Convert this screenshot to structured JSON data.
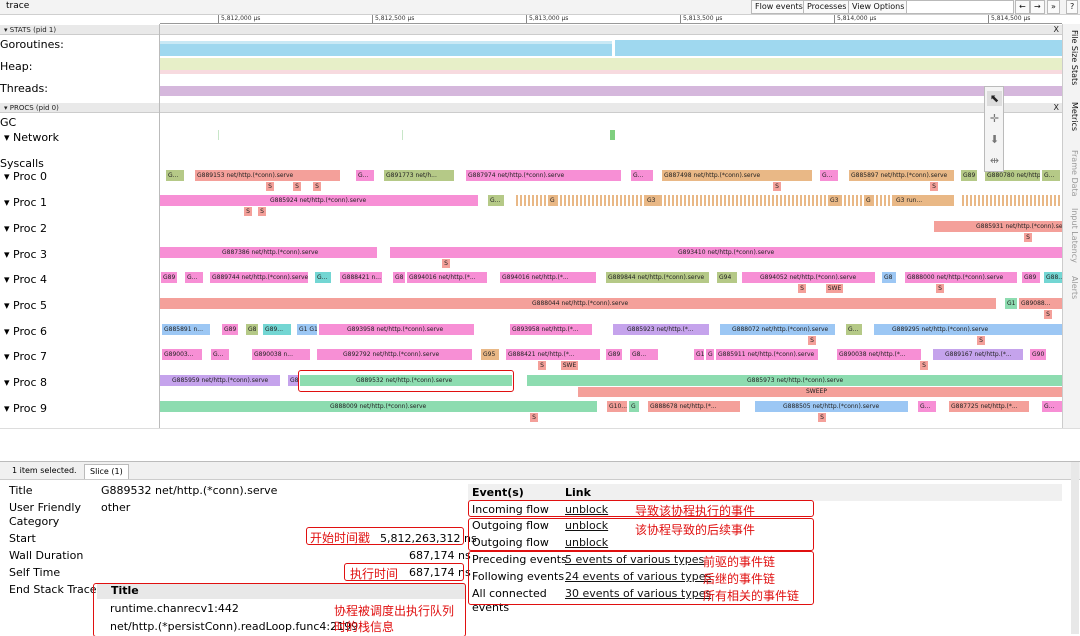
{
  "window": {
    "title": "trace"
  },
  "toolbar": {
    "flow_events": "Flow events",
    "processes": "Processes",
    "view_options": "View Options",
    "search_value": "",
    "nav_prev": "←",
    "nav_next": "→",
    "nav_more": "»",
    "help": "?"
  },
  "ruler": {
    "ticks": [
      "5,812,000 µs",
      "5,812,500 µs",
      "5,813,000 µs",
      "5,813,500 µs",
      "5,814,000 µs",
      "5,814,500 µs"
    ]
  },
  "stats_group": {
    "header": "▾ STATS (pid 1)",
    "close": "X",
    "rows": [
      "Goroutines:",
      "Heap:",
      "Threads:"
    ]
  },
  "procs_group": {
    "header": "▾ PROCS (pid 0)",
    "close": "X",
    "gc_label": "GC",
    "network_label": "▾  Network",
    "syscalls_label": "Syscalls",
    "proc_labels": [
      "▾  Proc 0",
      "▾  Proc 1",
      "▾  Proc 2",
      "▾  Proc 3",
      "▾  Proc 4",
      "▾  Proc 5",
      "▾  Proc 6",
      "▾  Proc 7",
      "▾  Proc 8",
      "▾  Proc 9"
    ]
  },
  "slices": {
    "p0": [
      "G...",
      "G889153 net/http.(*conn).serve",
      "G...",
      "G891773 net/h...",
      "G887974 net/http.(*conn).serve",
      "G...",
      "G887498 net/http.(*conn).serve",
      "G...",
      "G885897 net/http.(*conn).serve",
      "G89",
      "G880780 net/http.(*...",
      "G..."
    ],
    "p1": [
      "G885924 net/http.(*conn).serve",
      "G...",
      "G",
      "G3",
      "G3",
      "G",
      "G3 run..."
    ],
    "p2": [
      "G885931 net/http.(*conn).serve"
    ],
    "p3": [
      "G887386 net/http.(*conn).serve",
      "G893410 net/http.(*conn).serve"
    ],
    "p4": [
      "G89",
      "G...",
      "G889744 net/http.(*conn).serve",
      "G...",
      "G888421 n...",
      "G8",
      "G894016 net/http.(*...",
      "G894016 net/http.(*...",
      "G889844 net/http.(*conn).serve",
      "G94",
      "G894052 net/http.(*conn).serve",
      "G8",
      "G888000 net/http.(*conn).serve",
      "G89",
      "G88..."
    ],
    "p5": [
      "G888044 net/http.(*conn).serve",
      "G1",
      "G89088..."
    ],
    "p6": [
      "G885891 n...",
      "G89",
      "G8",
      "G89...",
      "G1 G1",
      "G893958 net/http.(*conn).serve",
      "G893958 net/http.(*...",
      "G885923 net/http.(*...",
      "G888072 net/http.(*conn).serve",
      "G...",
      "G889295 net/http.(*conn).serve"
    ],
    "p7": [
      "G89003...",
      "G...",
      "G890038 n...",
      "G892792 net/http.(*conn).serve",
      "G95",
      "G888421 net/http.(*...",
      "G89",
      "G8...",
      "G1",
      "G",
      "G885911 net/http.(*conn).serve",
      "G890038 net/http.(*...",
      "G889167 net/http.(*...",
      "G90"
    ],
    "p8": [
      "G885959 net/http.(*conn).serve",
      "G8",
      "G889532 net/http.(*conn).serve",
      "G885973 net/http.(*conn).serve",
      "SWEEP"
    ],
    "p9": [
      "G888009 net/http.(*conn).serve",
      "G10...",
      "G",
      "G888678 net/http.(*...",
      "G888505 net/http.(*conn).serve",
      "G...",
      "G887725 net/http.(*...",
      "G..."
    ],
    "marks": {
      "s": "S",
      "swe": "SWE"
    }
  },
  "side_tabs": [
    "File Size Stats",
    "Metrics",
    "Frame Data",
    "Input Latency",
    "Alerts"
  ],
  "bottom": {
    "selected_count": "1 item selected.",
    "tab": "Slice (1)",
    "props": {
      "title_label": "Title",
      "title_value": "G889532 net/http.(*conn).serve",
      "user_friendly_label": "User Friendly",
      "user_friendly_value": "other",
      "category_label": "Category",
      "start_label": "Start",
      "start_value": "5,812,263,312 ns",
      "wall_duration_label": "Wall Duration",
      "wall_duration_value": "687,174 ns",
      "self_time_label": "Self Time",
      "self_time_value": "687,174 ns",
      "end_stack_label": "End Stack Trace"
    },
    "stack": {
      "header": "Title",
      "rows": [
        "runtime.chanrecv1:442",
        "net/http.(*persistConn).readLoop.func4:2199"
      ]
    },
    "events": {
      "col_events": "Event(s)",
      "col_link": "Link",
      "rows": [
        {
          "label": "Incoming flow",
          "link": "unblock"
        },
        {
          "label": "Outgoing flow",
          "link": "unblock"
        },
        {
          "label": "Outgoing flow",
          "link": "unblock"
        },
        {
          "label": "Preceding events",
          "link": "5 events of various types"
        },
        {
          "label": "Following events",
          "link": "24 events of various types"
        },
        {
          "label": "All connected events",
          "link": "30 events of various types"
        }
      ]
    },
    "annotations": {
      "start_note": "开始时间戳",
      "self_note": "执行时间",
      "stack_note": "协程被调度出执行队列时的栈信息",
      "incoming_note": "导致该协程执行的事件",
      "outgoing_note": "该协程导致的后续事件",
      "preceding_note": "前驱的事件链",
      "following_note": "后继的事件链",
      "all_note": "所有相关的事件链"
    }
  },
  "colors": {
    "annotation_red": "#e01010",
    "slice_pink": "#f78fd5",
    "slice_salmon": "#f4a09a",
    "slice_green": "#8ddcb0",
    "slice_blue": "#9cc7f4",
    "slice_purple": "#c5a3ec",
    "slice_olive": "#b5c987",
    "slice_tan": "#e9b886",
    "slice_teal": "#73d6d3"
  }
}
